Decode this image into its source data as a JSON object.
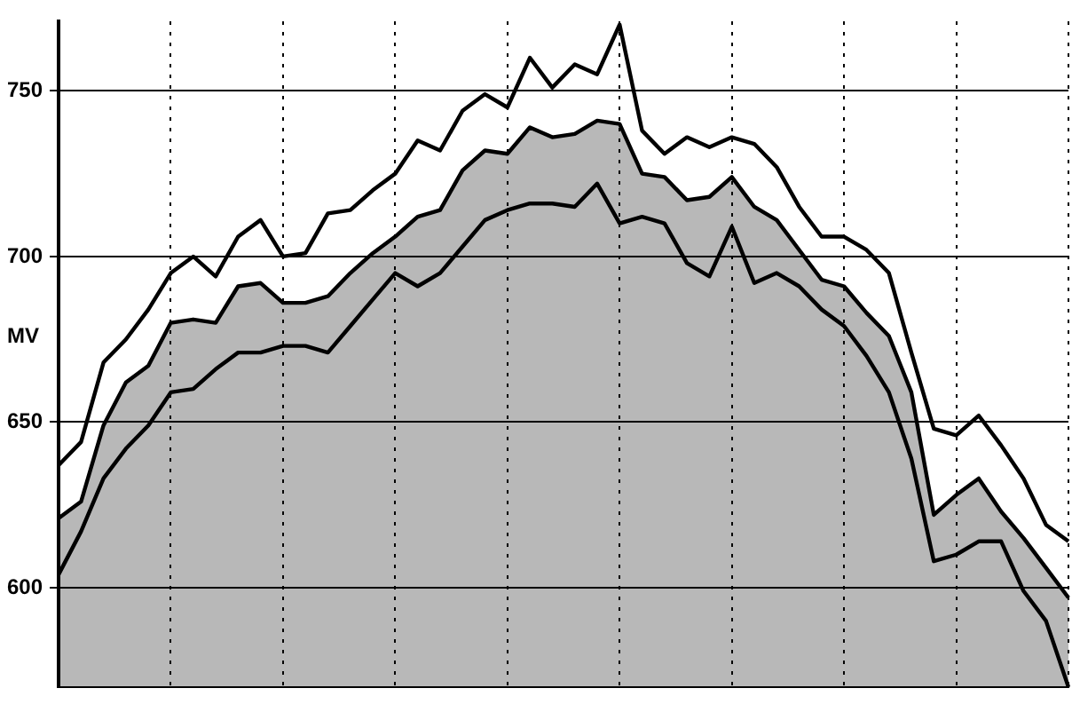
{
  "chart_data": {
    "type": "line",
    "ylabel": "MV",
    "categories": [
      null,
      null,
      null,
      null,
      null,
      null,
      null,
      null,
      null,
      null,
      null,
      null,
      null,
      null,
      null,
      null,
      null,
      null,
      null,
      null,
      null,
      null,
      null,
      null,
      null,
      null,
      null,
      null,
      null,
      null,
      null,
      null,
      null,
      null,
      null,
      null,
      null,
      null,
      null,
      null,
      null,
      null,
      null,
      null,
      null,
      null
    ],
    "series": [
      {
        "color": "#000000",
        "values": [
          637,
          644,
          668,
          675,
          684,
          695,
          700,
          694,
          706,
          711,
          700,
          701,
          713,
          714,
          720,
          725,
          735,
          732,
          744,
          749,
          745,
          760,
          751,
          758,
          755,
          770,
          738,
          731,
          736,
          733,
          736,
          734,
          727,
          715,
          706,
          706,
          702,
          695,
          671,
          648,
          646,
          652,
          643,
          633,
          619,
          614
        ]
      },
      {
        "type": "area",
        "color": "#000000",
        "values": [
          621,
          626,
          649,
          662,
          667,
          680,
          681,
          680,
          691,
          692,
          686,
          686,
          688,
          695,
          701,
          706,
          712,
          714,
          726,
          732,
          731,
          739,
          736,
          737,
          741,
          740,
          725,
          724,
          717,
          718,
          724,
          715,
          711,
          702,
          693,
          691,
          683,
          676,
          659,
          622,
          628,
          633,
          623,
          615,
          606,
          597
        ]
      },
      {
        "color": "#000000",
        "values": [
          604,
          617,
          633,
          642,
          649,
          659,
          660,
          666,
          671,
          671,
          673,
          673,
          671,
          679,
          687,
          695,
          691,
          695,
          703,
          711,
          714,
          716,
          716,
          715,
          722,
          710,
          712,
          710,
          698,
          694,
          709,
          692,
          695,
          691,
          684,
          679,
          670,
          659,
          639,
          608,
          610,
          614,
          614,
          599,
          590,
          570
        ]
      }
    ],
    "ylim": [
      570,
      771
    ],
    "yticks": [
      600,
      650,
      700,
      750
    ],
    "grid": true,
    "tick_labels": "y",
    "legend": false,
    "marker": "none",
    "line_style": "solid"
  }
}
